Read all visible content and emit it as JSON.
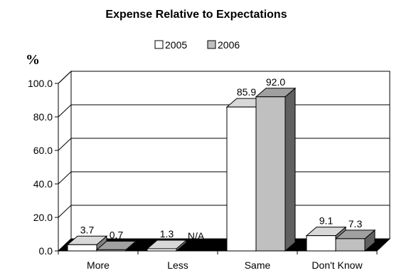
{
  "chart_data": {
    "type": "bar",
    "title": "Expense Relative to Expectations",
    "ylabel": "%",
    "categories": [
      "More",
      "Less",
      "Same",
      "Don't Know"
    ],
    "series": [
      {
        "name": "2005",
        "values": [
          3.7,
          1.3,
          85.9,
          9.1
        ],
        "labels": [
          "3.7",
          "1.3",
          "85.9",
          "9.1"
        ],
        "color": "#ffffff"
      },
      {
        "name": "2006",
        "values": [
          0.7,
          null,
          92.0,
          7.3
        ],
        "labels": [
          "0.7",
          "N/A",
          "92.0",
          "7.3"
        ],
        "color": "#c0c0c0"
      }
    ],
    "yticks": [
      "0.0",
      "20.0",
      "40.0",
      "60.0",
      "80.0",
      "100.0"
    ],
    "ylim": [
      0,
      100
    ],
    "grid": true,
    "legend": "top",
    "style": "3d-bar",
    "colors": {
      "back_wall": "#ffffff",
      "floor": "#000000",
      "outline": "#000000"
    }
  }
}
